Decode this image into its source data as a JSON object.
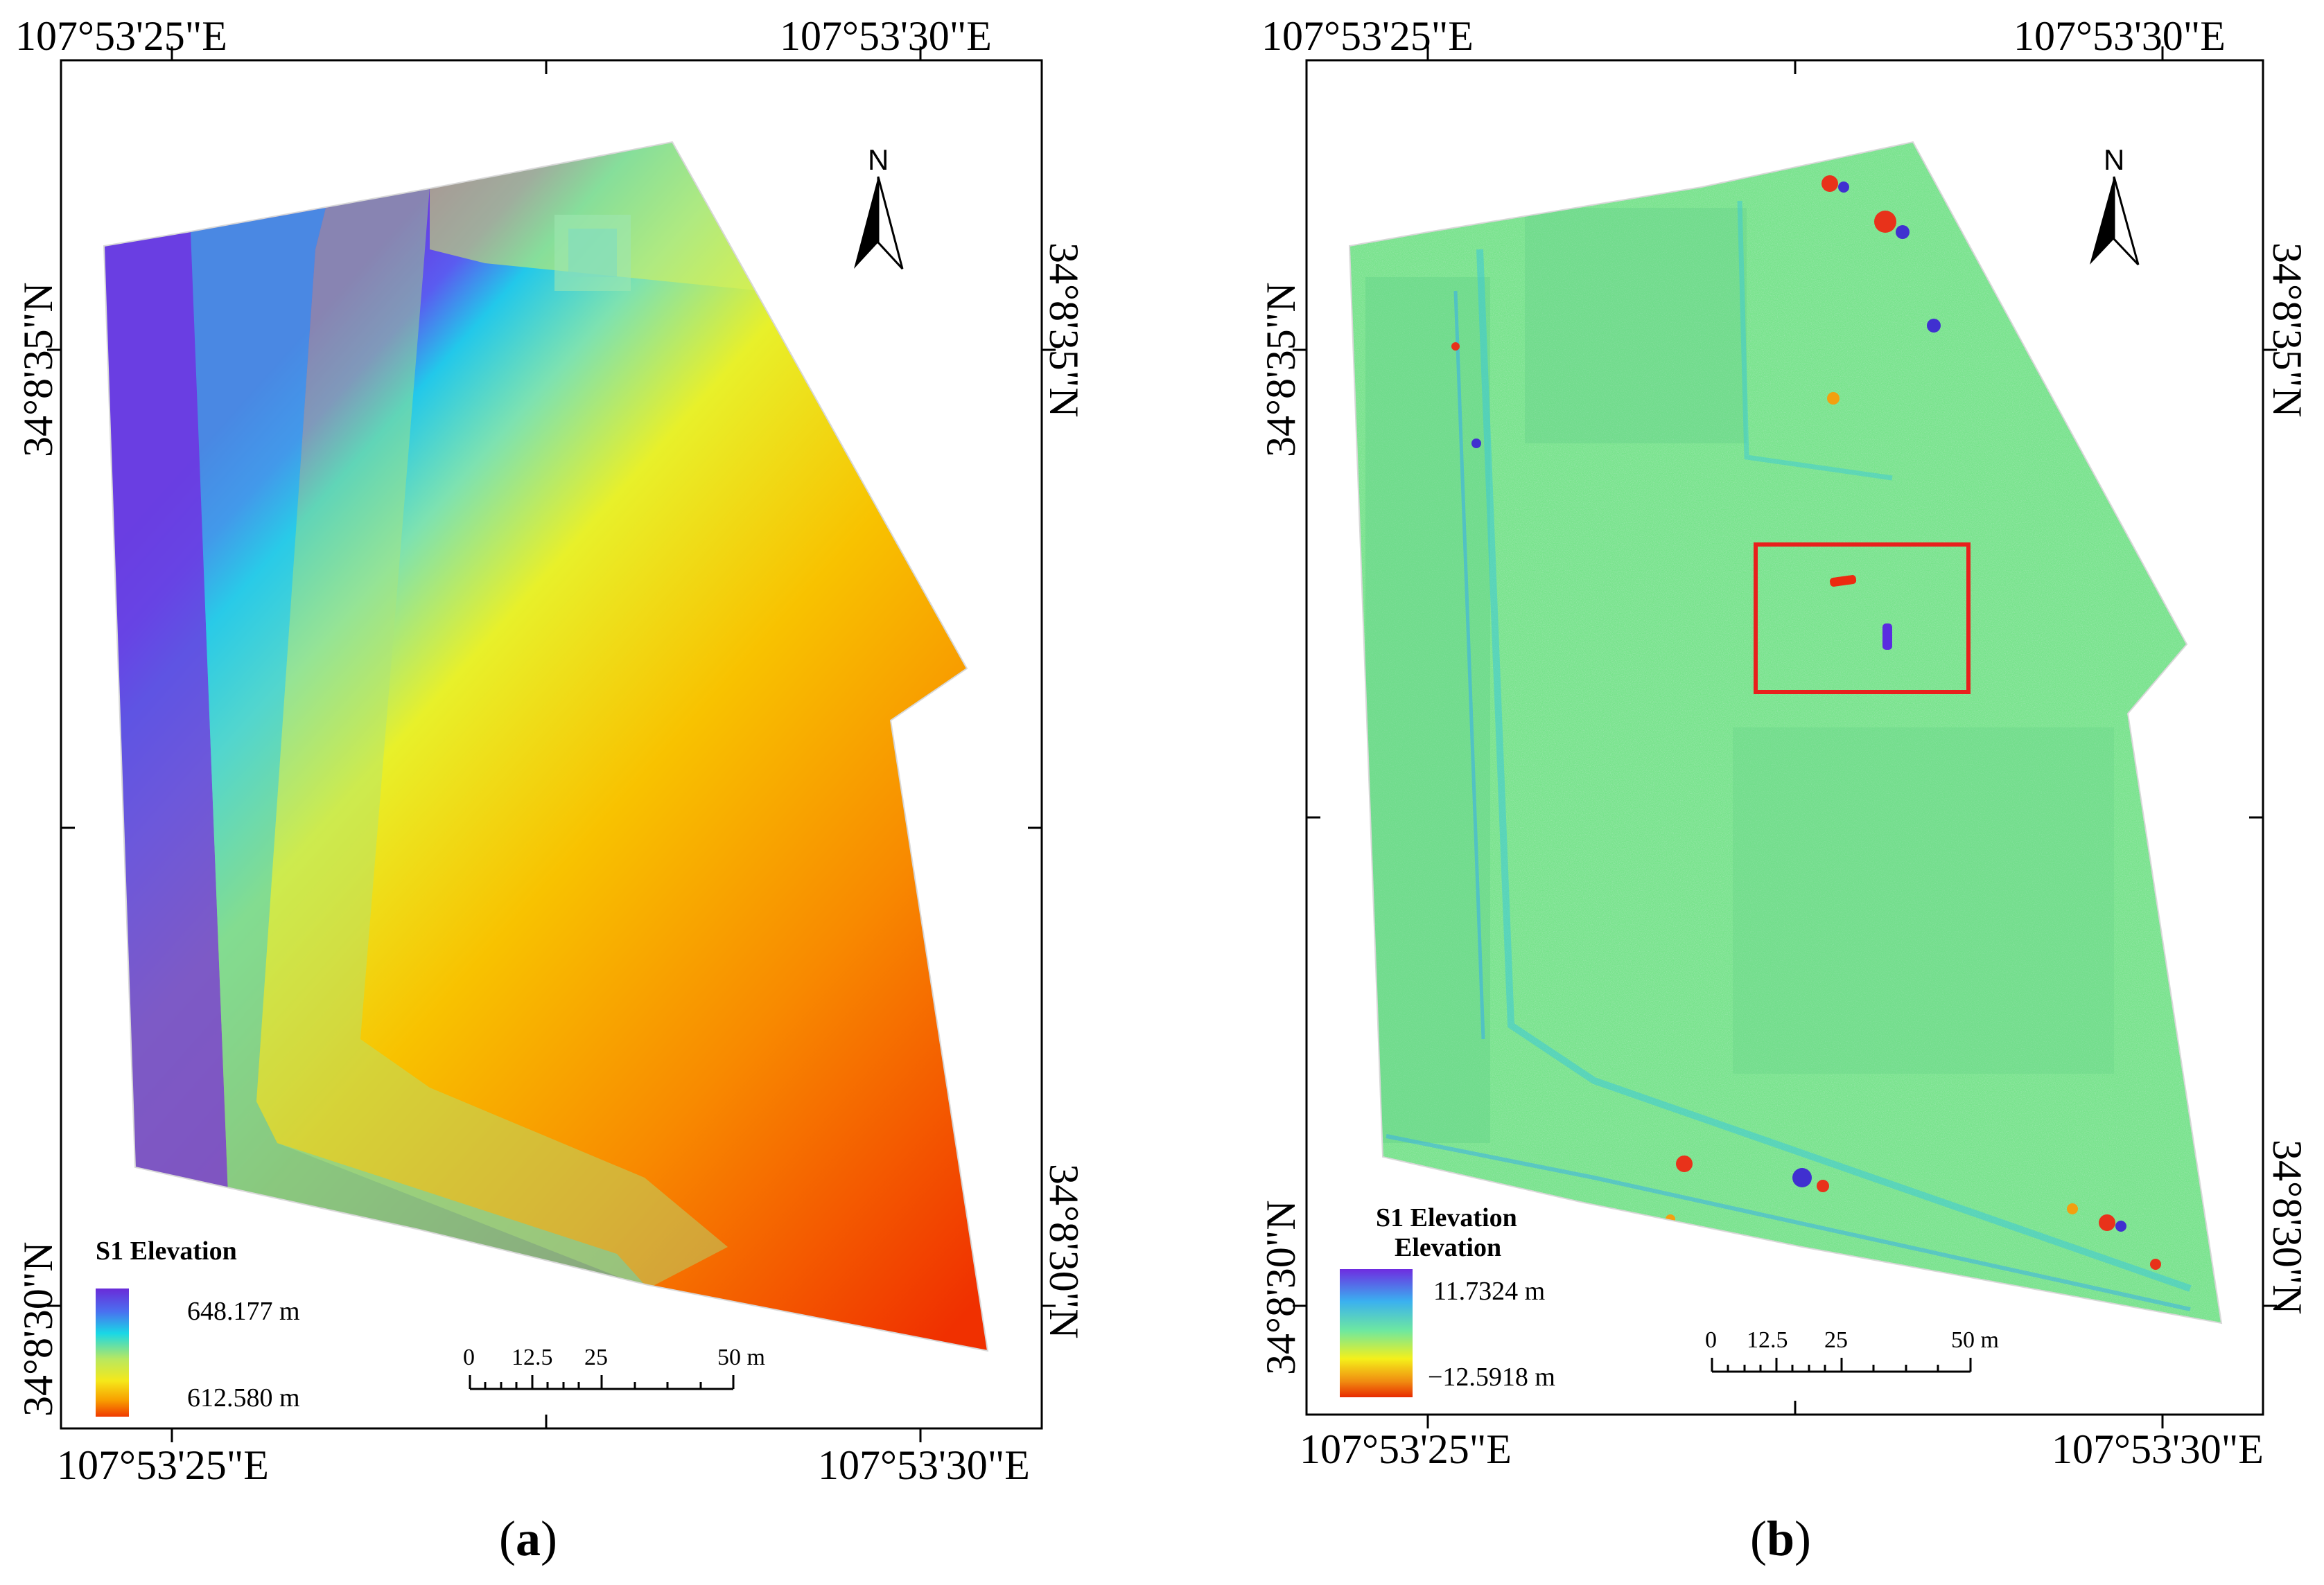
{
  "panels": [
    {
      "id": "a",
      "label_letter": "a",
      "lon_left": "107°53'25\"E",
      "lon_right": "107°53'30\"E",
      "lat_upper": "34°8'35\"N",
      "lat_lower": "34°8'30\"N",
      "north_label": "N",
      "legend": {
        "title": "S1 Elevation",
        "title_line2": "",
        "max": "648.177 m",
        "min": "612.580 m"
      },
      "scale": {
        "ticks": [
          "0",
          "12.5",
          "25",
          "50 m"
        ]
      }
    },
    {
      "id": "b",
      "label_letter": "b",
      "lon_left": "107°53'25\"E",
      "lon_right": "107°53'30\"E",
      "lat_upper": "34°8'35\"N",
      "lat_lower": "34°8'30\"N",
      "north_label": "N",
      "legend": {
        "title": "S1 Elevation",
        "title_line2": "Elevation",
        "max": "11.7324 m",
        "min": "−12.5918 m"
      },
      "scale": {
        "ticks": [
          "0",
          "12.5",
          "25",
          "50 m"
        ]
      }
    }
  ],
  "colors": {
    "elevation_ramp": [
      "#6a2bd8",
      "#4a60f0",
      "#19d8e6",
      "#9ee06a",
      "#f2f21a",
      "#f8a500",
      "#f03a00"
    ],
    "difference_ramp": [
      "#6f2ce0",
      "#3ab0f0",
      "#6ee8a0",
      "#f5f01a",
      "#f08a10",
      "#e82a00"
    ],
    "difference_base": "#78e38c",
    "highlight_box": "#e8201c"
  }
}
